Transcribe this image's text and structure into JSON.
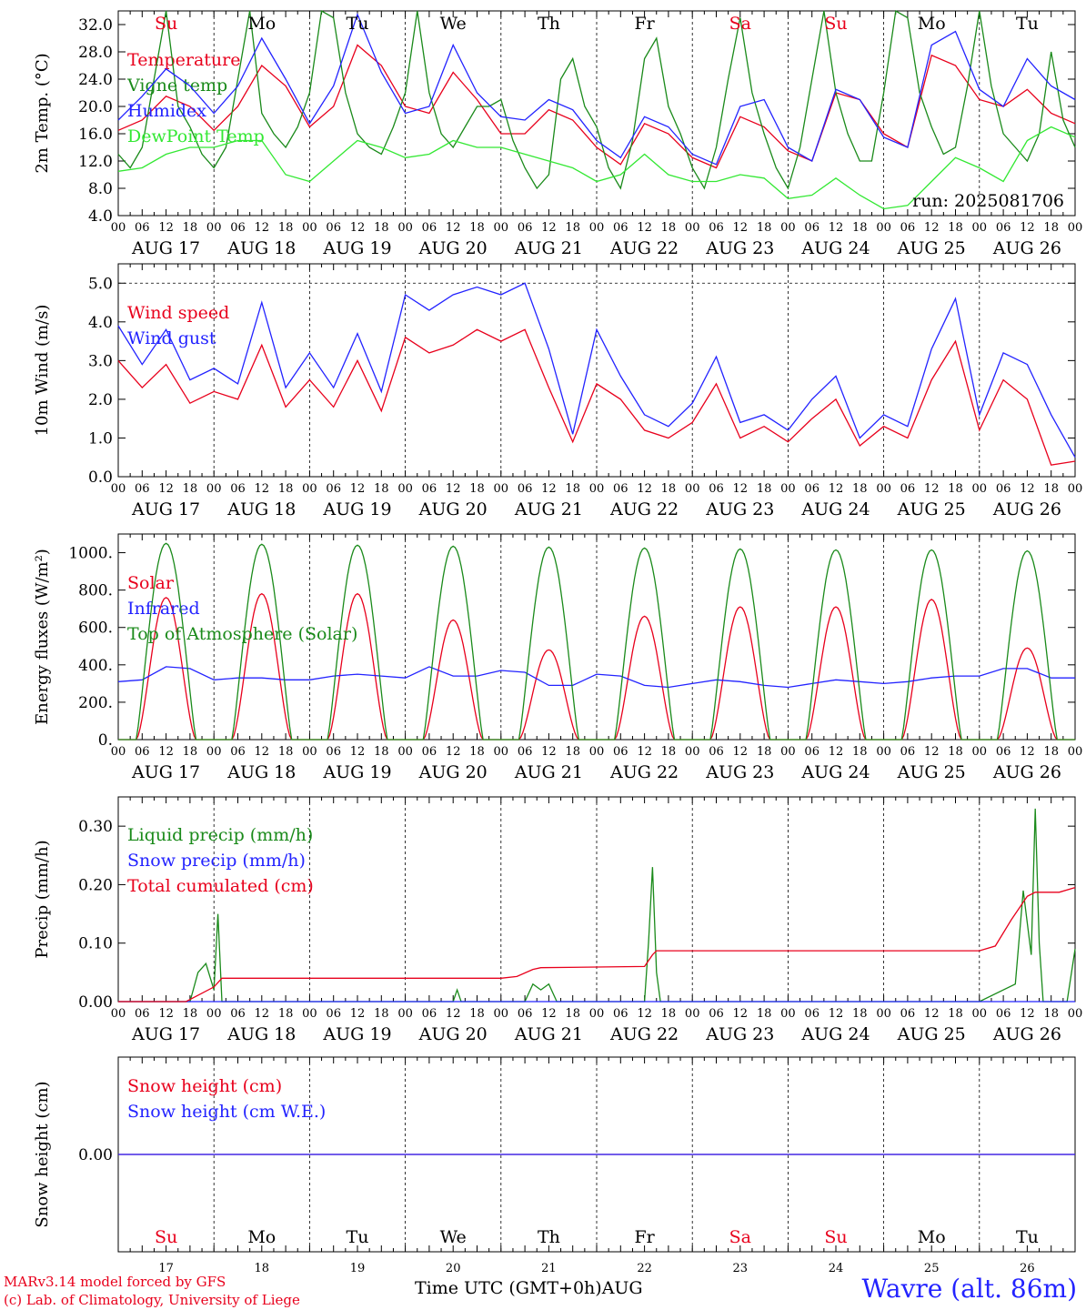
{
  "run_label": "run: 2025081706",
  "x_axis": {
    "hour_ticks": [
      "00",
      "06",
      "12",
      "18"
    ],
    "final_tick": "00",
    "date_labels": [
      "AUG 17",
      "AUG 18",
      "AUG 19",
      "AUG 20",
      "AUG 21",
      "AUG 22",
      "AUG 23",
      "AUG 24",
      "AUG 25",
      "AUG 26"
    ],
    "day_names": [
      "Su",
      "Mo",
      "Tu",
      "We",
      "Th",
      "Fr",
      "Sa",
      "Su",
      "Mo",
      "Tu"
    ],
    "weekend_flags": [
      true,
      false,
      false,
      false,
      false,
      false,
      true,
      true,
      false,
      false
    ],
    "day_numbers": [
      "17",
      "18",
      "19",
      "20",
      "21",
      "22",
      "23",
      "24",
      "25",
      "26"
    ],
    "title": "Time UTC (GMT+0h)",
    "month": "AUG"
  },
  "footer": {
    "credit_line1": "MARv3.14 model forced by GFS",
    "credit_line2": "(c) Lab. of Climatology, University of Liege",
    "station": "Wavre (alt. 86m)"
  },
  "colors": {
    "red": "#e8001c",
    "green": "#1a8a1a",
    "blue": "#2323ff",
    "lightgreen": "#33e833",
    "black": "#000000"
  },
  "chart_data": [
    {
      "type": "line",
      "ylabel": "2m Temp. (°C)",
      "ylim": [
        4,
        34
      ],
      "yticks": [
        4,
        8,
        12,
        16,
        20,
        24,
        28,
        32
      ],
      "ytick_labels": [
        "4.0",
        "8.0",
        "12.0",
        "16.0",
        "20.0",
        "24.0",
        "28.0",
        "32.0"
      ],
      "show_day_names": true,
      "legend_placement": "left",
      "x_unit": "hours since AUG 17 00 UTC",
      "series": [
        {
          "name": "Temperature",
          "color": "red",
          "x": [
            0,
            6,
            12,
            18,
            24,
            30,
            36,
            42,
            48,
            54,
            60,
            66,
            72,
            78,
            84,
            90,
            96,
            102,
            108,
            114,
            120,
            126,
            132,
            138,
            144,
            150,
            156,
            162,
            168,
            174,
            180,
            186,
            192,
            198,
            204,
            210,
            216,
            222,
            228,
            234,
            240
          ],
          "values": [
            16.5,
            18,
            21.5,
            20,
            16.5,
            20,
            26,
            23,
            17,
            20,
            29,
            26,
            20,
            19,
            25,
            21,
            16,
            16,
            19.5,
            18,
            14,
            11.5,
            17.5,
            16,
            12.5,
            11,
            18.5,
            17,
            13.5,
            12,
            22,
            21,
            16,
            14,
            27.5,
            26,
            21,
            20,
            22.5,
            19,
            17.5
          ]
        },
        {
          "name": "Vigne temp",
          "color": "green",
          "x": [
            0,
            3,
            6,
            9,
            12,
            15,
            18,
            21,
            24,
            27,
            30,
            33,
            36,
            39,
            42,
            45,
            48,
            51,
            54,
            57,
            60,
            63,
            66,
            69,
            72,
            75,
            78,
            81,
            84,
            87,
            90,
            93,
            96,
            99,
            102,
            105,
            108,
            111,
            114,
            117,
            120,
            123,
            126,
            129,
            132,
            135,
            138,
            141,
            144,
            147,
            150,
            153,
            156,
            159,
            162,
            165,
            168,
            171,
            174,
            177,
            180,
            183,
            186,
            189,
            192,
            195,
            198,
            201,
            204,
            207,
            210,
            213,
            216,
            219,
            222,
            225,
            228,
            231,
            234,
            237,
            240
          ],
          "values": [
            13,
            11,
            14,
            24,
            34,
            20,
            17,
            13,
            11,
            14,
            24,
            34,
            19,
            16,
            14,
            17,
            22,
            34,
            33,
            22,
            16,
            14,
            13,
            17,
            22,
            34,
            22,
            16,
            14,
            17,
            20,
            20,
            21,
            15,
            11,
            8,
            10,
            24,
            27,
            20,
            17,
            11,
            8,
            15,
            27,
            30,
            20,
            16,
            11,
            8,
            14,
            24,
            33,
            22,
            16,
            11,
            8,
            14,
            24,
            34,
            22,
            16,
            12,
            12,
            22,
            34,
            33,
            22,
            17,
            13,
            14,
            23,
            34,
            23,
            16,
            14,
            12,
            16,
            28,
            18,
            14
          ]
        },
        {
          "name": "Humidex",
          "color": "blue",
          "x": [
            0,
            6,
            12,
            18,
            24,
            30,
            36,
            42,
            48,
            54,
            60,
            66,
            72,
            78,
            84,
            90,
            96,
            102,
            108,
            114,
            120,
            126,
            132,
            138,
            144,
            150,
            156,
            162,
            168,
            174,
            180,
            186,
            192,
            198,
            204,
            210,
            216,
            222,
            228,
            234,
            240
          ],
          "values": [
            18,
            21.5,
            25.5,
            23,
            19,
            23,
            30,
            24,
            17.5,
            23,
            33.5,
            25,
            19,
            20,
            29,
            22,
            18.5,
            18,
            21,
            19.5,
            15,
            12.5,
            18.5,
            17,
            13,
            11.5,
            20,
            21,
            14,
            12,
            22.5,
            21,
            15.5,
            14,
            29,
            31,
            22.5,
            20,
            27,
            23,
            21
          ]
        },
        {
          "name": "DewPoint Temp",
          "color": "lightgreen",
          "x": [
            0,
            6,
            12,
            18,
            24,
            30,
            36,
            42,
            48,
            54,
            60,
            66,
            72,
            78,
            84,
            90,
            96,
            102,
            108,
            114,
            120,
            126,
            132,
            138,
            144,
            150,
            156,
            162,
            168,
            174,
            180,
            186,
            192,
            198,
            204,
            210,
            216,
            222,
            228,
            234,
            240
          ],
          "values": [
            10.5,
            11,
            13,
            14,
            14,
            15,
            15,
            10,
            9,
            12,
            15,
            14,
            12.5,
            13,
            15,
            14,
            14,
            13,
            12,
            11,
            9,
            10,
            13,
            10,
            9,
            9,
            10,
            9.5,
            6.5,
            7,
            9.5,
            7,
            5,
            5.5,
            9,
            12.5,
            11,
            9,
            15,
            17,
            15.5
          ]
        }
      ]
    },
    {
      "type": "line",
      "ylabel": "10m Wind (m/s)",
      "ylim": [
        0,
        5.5
      ],
      "yticks": [
        0,
        1,
        2,
        3,
        4,
        5
      ],
      "ytick_labels": [
        "0.0",
        "1.0",
        "2.0",
        "3.0",
        "4.0",
        "5.0"
      ],
      "dashed_reference": 5.0,
      "show_day_names": false,
      "legend_placement": "left",
      "x_unit": "hours since AUG 17 00 UTC",
      "series": [
        {
          "name": "Wind speed",
          "color": "red",
          "x": [
            0,
            6,
            12,
            18,
            24,
            30,
            36,
            42,
            48,
            54,
            60,
            66,
            72,
            78,
            84,
            90,
            96,
            102,
            108,
            114,
            120,
            126,
            132,
            138,
            144,
            150,
            156,
            162,
            168,
            174,
            180,
            186,
            192,
            198,
            204,
            210,
            216,
            222,
            228,
            234,
            240
          ],
          "values": [
            3,
            2.3,
            2.9,
            1.9,
            2.2,
            2.0,
            3.4,
            1.8,
            2.5,
            1.8,
            3.0,
            1.7,
            3.6,
            3.2,
            3.4,
            3.8,
            3.5,
            3.8,
            2.3,
            0.9,
            2.4,
            2.0,
            1.2,
            1.0,
            1.4,
            2.4,
            1.0,
            1.3,
            0.9,
            1.5,
            2.0,
            0.8,
            1.3,
            1.0,
            2.5,
            3.5,
            1.2,
            2.5,
            2.0,
            0.3,
            0.4
          ]
        },
        {
          "name": "Wind gust",
          "color": "blue",
          "x": [
            0,
            6,
            12,
            18,
            24,
            30,
            36,
            42,
            48,
            54,
            60,
            66,
            72,
            78,
            84,
            90,
            96,
            102,
            108,
            114,
            120,
            126,
            132,
            138,
            144,
            150,
            156,
            162,
            168,
            174,
            180,
            186,
            192,
            198,
            204,
            210,
            216,
            222,
            228,
            234,
            240
          ],
          "values": [
            3.9,
            2.9,
            3.8,
            2.5,
            2.8,
            2.4,
            4.5,
            2.3,
            3.2,
            2.3,
            3.7,
            2.2,
            4.7,
            4.3,
            4.7,
            4.9,
            4.7,
            5.0,
            3.3,
            1.1,
            3.8,
            2.6,
            1.6,
            1.3,
            1.9,
            3.1,
            1.4,
            1.6,
            1.2,
            2.0,
            2.6,
            1.0,
            1.6,
            1.3,
            3.3,
            4.6,
            1.6,
            3.2,
            2.9,
            1.6,
            0.5
          ]
        }
      ]
    },
    {
      "type": "line",
      "ylabel": "Energy fluxes (W/m²)",
      "ylim": [
        0,
        1100
      ],
      "yticks": [
        0,
        200,
        400,
        600,
        800,
        1000
      ],
      "ytick_labels": [
        "0.",
        "200.",
        "400.",
        "600.",
        "800.",
        "1000."
      ],
      "show_day_names": false,
      "legend_placement": "left",
      "x_unit": "hours since AUG 17 00 UTC",
      "series": [
        {
          "name": "Solar",
          "color": "red",
          "daily_peaks": [
            760,
            780,
            780,
            640,
            480,
            660,
            710,
            710,
            750,
            490
          ]
        },
        {
          "name": "Infrared",
          "color": "blue",
          "x": [
            0,
            6,
            12,
            18,
            24,
            30,
            36,
            42,
            48,
            54,
            60,
            66,
            72,
            78,
            84,
            90,
            96,
            102,
            108,
            114,
            120,
            126,
            132,
            138,
            144,
            150,
            156,
            162,
            168,
            174,
            180,
            186,
            192,
            198,
            204,
            210,
            216,
            222,
            228,
            234,
            240
          ],
          "values": [
            310,
            320,
            390,
            380,
            320,
            330,
            330,
            320,
            320,
            340,
            350,
            340,
            330,
            390,
            340,
            340,
            370,
            360,
            290,
            290,
            350,
            340,
            290,
            280,
            300,
            320,
            310,
            290,
            280,
            300,
            320,
            310,
            300,
            310,
            330,
            340,
            340,
            380,
            380,
            330,
            330
          ]
        },
        {
          "name": "Top of Atmosphere (Solar)",
          "color": "green",
          "daily_peaks": [
            1050,
            1045,
            1040,
            1035,
            1030,
            1025,
            1020,
            1015,
            1015,
            1010
          ]
        }
      ]
    },
    {
      "type": "line",
      "ylabel": "Precip (mm/h)",
      "ylim": [
        0,
        0.35
      ],
      "yticks": [
        0,
        0.1,
        0.2,
        0.3
      ],
      "ytick_labels": [
        "0.00",
        "0.10",
        "0.20",
        "0.30"
      ],
      "show_day_names": false,
      "legend_placement": "left",
      "x_unit": "hours since AUG 17 00 UTC",
      "series": [
        {
          "name": "Liquid precip (mm/h)",
          "color": "green",
          "x": [
            0,
            18,
            20,
            22,
            24,
            25,
            26,
            28,
            30,
            84,
            85,
            86,
            102,
            104,
            106,
            108,
            110,
            132,
            133,
            134,
            135,
            136,
            138,
            140,
            216,
            225,
            227,
            229,
            230,
            231,
            232,
            233,
            235,
            238,
            240
          ],
          "values": [
            0,
            0,
            0.05,
            0.065,
            0.02,
            0.15,
            0.0,
            0,
            0,
            0,
            0.02,
            0,
            0,
            0.03,
            0.02,
            0.03,
            0,
            0,
            0.1,
            0.23,
            0.05,
            0,
            0,
            0,
            0,
            0.03,
            0.19,
            0.08,
            0.33,
            0.1,
            0.0,
            0,
            0,
            0,
            0.09
          ]
        },
        {
          "name": "Snow precip (mm/h)",
          "color": "blue",
          "x": [
            0,
            240
          ],
          "values": [
            0,
            0
          ]
        },
        {
          "name": "Total cumulated (cm)",
          "color": "red",
          "x": [
            0,
            17,
            24,
            26,
            96,
            100,
            104,
            106,
            132,
            134,
            135,
            216,
            220,
            224,
            228,
            230,
            236,
            240
          ],
          "values": [
            0,
            0,
            0.025,
            0.04,
            0.04,
            0.043,
            0.055,
            0.058,
            0.06,
            0.08,
            0.087,
            0.087,
            0.095,
            0.14,
            0.18,
            0.187,
            0.187,
            0.195
          ]
        }
      ]
    },
    {
      "type": "line",
      "ylabel": "Snow height (cm)",
      "ylim": [
        -1,
        1
      ],
      "yticks": [
        0
      ],
      "ytick_labels": [
        "0.00"
      ],
      "show_day_names": false,
      "legend_placement": "left",
      "x_unit": "hours since AUG 17 00 UTC",
      "series": [
        {
          "name": "Snow height (cm)",
          "color": "red",
          "x": [
            0,
            240
          ],
          "values": [
            0,
            0
          ]
        },
        {
          "name": "Snow height (cm W.E.)",
          "color": "blue",
          "x": [
            0,
            240
          ],
          "values": [
            0,
            0
          ]
        }
      ]
    }
  ]
}
